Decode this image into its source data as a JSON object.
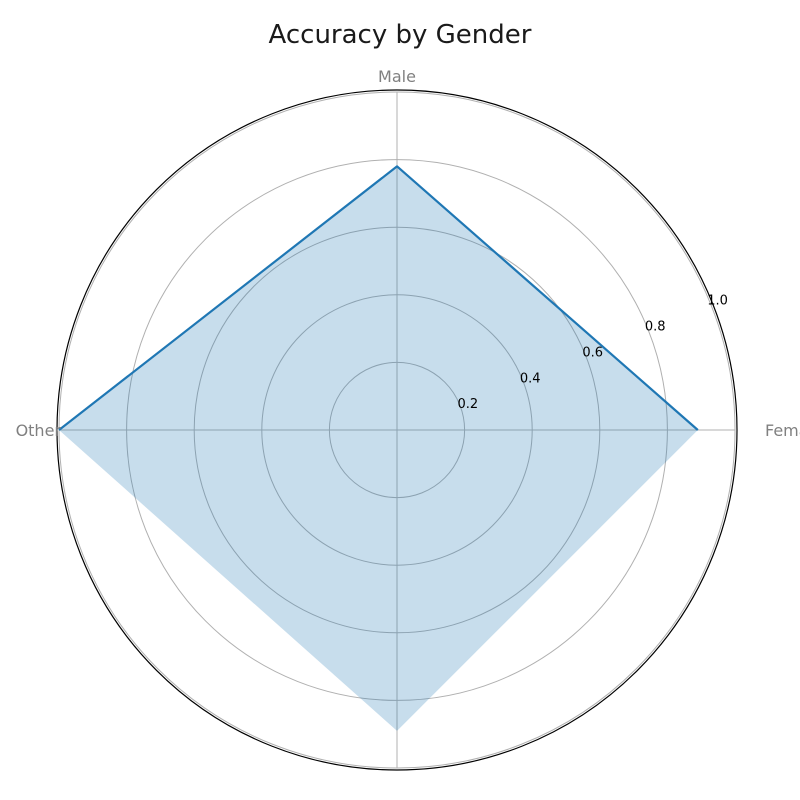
{
  "chart_data": {
    "type": "radar",
    "title": "Accuracy by Gender",
    "categories": [
      "Female",
      "Male",
      "Other",
      ""
    ],
    "series": [
      {
        "values": [
          0.89,
          0.78,
          1.0,
          0.89
        ]
      }
    ],
    "rlim": [
      0,
      1.0
    ],
    "rticks": [
      0.2,
      0.4,
      0.6,
      0.8,
      1.0
    ],
    "rtick_labels": [
      "0.2",
      "0.4",
      "0.6",
      "0.8",
      "1.0"
    ],
    "grid": true,
    "colors": {
      "line": "#1f77b4",
      "fill": "#1f77b4",
      "grid": "#b0b0b0",
      "frame": "#000000",
      "axis_label": "#808080"
    }
  }
}
